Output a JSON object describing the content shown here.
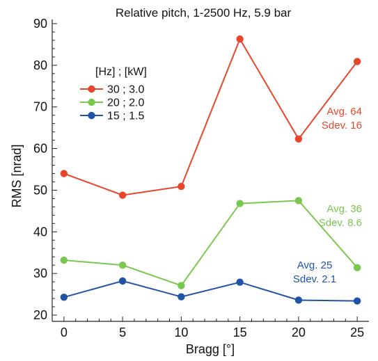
{
  "chart_data": {
    "type": "line",
    "title": "Relative pitch, 1-2500 Hz, 5.9 bar",
    "xlabel": "Bragg [°]",
    "ylabel": "RMS [nrad]",
    "x": [
      0,
      5,
      10,
      15,
      20,
      25
    ],
    "xlim": [
      -1,
      26
    ],
    "ylim": [
      18.5,
      91
    ],
    "xticks": [
      0,
      5,
      10,
      15,
      20,
      25
    ],
    "yticks": [
      20,
      30,
      40,
      50,
      60,
      70,
      80,
      90
    ],
    "xtick_labels": [
      "0",
      "5",
      "10",
      "15",
      "20",
      "25"
    ],
    "ytick_labels": [
      "20",
      "30",
      "40",
      "50",
      "60",
      "70",
      "80",
      "90"
    ],
    "grid": false,
    "legend_title": "[Hz] ; [kW]",
    "legend_position": "upper-left",
    "series": [
      {
        "name": "30 ; 3.0",
        "color": "#e8462a",
        "values": [
          54.0,
          48.8,
          50.9,
          86.3,
          62.3,
          80.9
        ],
        "annotation": [
          "Avg.  64",
          "Sdev. 16"
        ]
      },
      {
        "name": "20 ; 2.0",
        "color": "#7ac74f",
        "values": [
          33.2,
          32.0,
          27.1,
          46.8,
          47.5,
          31.4
        ],
        "annotation": [
          "Avg.  36",
          "Sdev. 8.6"
        ]
      },
      {
        "name": "15 ; 1.5",
        "color": "#1f53a5",
        "values": [
          24.3,
          28.2,
          24.4,
          27.9,
          23.6,
          23.4
        ],
        "annotation": [
          "Avg.  25",
          "Sdev. 2.1"
        ]
      }
    ]
  }
}
